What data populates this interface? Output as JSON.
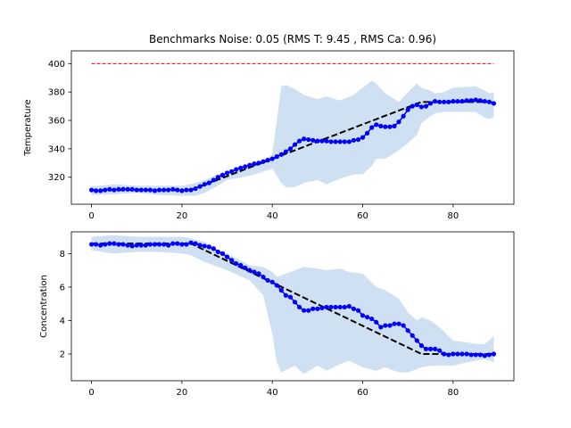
{
  "figure": {
    "title": "Benchmarks Noise: 0.05 (RMS T: 9.45 , RMS Ca: 0.96)"
  },
  "colors": {
    "series_points": "#0000ff",
    "reference": "#000000",
    "limit": "#ff0000",
    "band": "#c6dbee"
  },
  "chart_data": [
    {
      "type": "line",
      "ylabel": "Temperature",
      "xlabel": "",
      "xlim": [
        -4.45,
        93.45
      ],
      "ylim": [
        301,
        409
      ],
      "xticks": [
        0,
        20,
        40,
        60,
        80
      ],
      "yticks": [
        320,
        340,
        360,
        380,
        400
      ],
      "grid": false,
      "limit_line": {
        "y": 400,
        "x_range": [
          0,
          89
        ],
        "style": "dashed",
        "color": "red"
      },
      "band": {
        "x": [
          0,
          5,
          10,
          15,
          20,
          23,
          25,
          28,
          30,
          35,
          38,
          40,
          41,
          42,
          43,
          45,
          47,
          50,
          52,
          55,
          58,
          60,
          62,
          63,
          65,
          68,
          70,
          72,
          73,
          75,
          76,
          78,
          80,
          85,
          87,
          88,
          89
        ],
        "upper": [
          313.5,
          315,
          314,
          314,
          314,
          316,
          318,
          322,
          324,
          329,
          332,
          336,
          360,
          384,
          385,
          382,
          378,
          375,
          377,
          374,
          378,
          383,
          388,
          386,
          379,
          373,
          380,
          386,
          383,
          381,
          379,
          380,
          383,
          384,
          381,
          379,
          380
        ],
        "lower": [
          307.5,
          308,
          309,
          307.5,
          307,
          307,
          309,
          314,
          318,
          321,
          324,
          326,
          321,
          316,
          313,
          313,
          316,
          318,
          315,
          319,
          322,
          322,
          328,
          333,
          333,
          339,
          344,
          350,
          358,
          363,
          365,
          366,
          366,
          366,
          362,
          361,
          362
        ]
      },
      "reference": {
        "x": [
          0,
          22,
          73,
          75,
          89
        ],
        "y": [
          311,
          311,
          373,
          373,
          373
        ]
      },
      "points": {
        "x": [
          0,
          1,
          2,
          3,
          4,
          5,
          6,
          7,
          8,
          9,
          10,
          11,
          12,
          13,
          14,
          15,
          16,
          17,
          18,
          19,
          20,
          21,
          22,
          23,
          24,
          25,
          26,
          27,
          28,
          29,
          30,
          31,
          32,
          33,
          34,
          35,
          36,
          37,
          38,
          39,
          40,
          41,
          42,
          43,
          44,
          45,
          46,
          47,
          48,
          49,
          50,
          51,
          52,
          53,
          54,
          55,
          56,
          57,
          58,
          59,
          60,
          61,
          62,
          63,
          64,
          65,
          66,
          67,
          68,
          69,
          70,
          71,
          72,
          73,
          74,
          75,
          76,
          77,
          78,
          79,
          80,
          81,
          82,
          83,
          84,
          85,
          86,
          87,
          88,
          89
        ],
        "y": [
          311,
          310.5,
          310.5,
          311,
          311.5,
          311,
          311.5,
          311.5,
          311.5,
          311.5,
          311,
          311,
          311,
          311,
          310.5,
          311,
          311,
          311,
          311.5,
          311,
          310.5,
          311,
          311,
          312,
          313.5,
          315,
          316,
          318,
          320,
          321.5,
          323,
          324,
          325.5,
          326.5,
          327.5,
          328.5,
          329.5,
          330,
          331,
          332,
          333,
          334.5,
          336,
          338,
          340,
          343,
          345.5,
          347,
          346.5,
          346,
          345.5,
          345.5,
          345.5,
          345,
          345,
          345,
          345,
          345,
          346,
          346.5,
          348,
          351,
          355,
          357,
          356,
          355.5,
          355.5,
          356,
          359,
          363,
          367.5,
          370,
          371,
          369.5,
          370,
          372,
          373.5,
          373,
          373,
          373,
          373.5,
          373.5,
          373.5,
          374,
          374,
          374.5,
          374,
          373.5,
          373,
          372
        ]
      }
    },
    {
      "type": "line",
      "ylabel": "Concentration",
      "xlabel": "",
      "xlim": [
        -4.45,
        93.45
      ],
      "ylim": [
        0.4,
        9.3
      ],
      "xticks": [
        0,
        20,
        40,
        60,
        80
      ],
      "yticks": [
        2,
        4,
        6,
        8
      ],
      "grid": false,
      "band": {
        "x": [
          0,
          5,
          10,
          15,
          20,
          22,
          25,
          28,
          30,
          35,
          38,
          40,
          41,
          42,
          45,
          47,
          50,
          52,
          55,
          57,
          60,
          63,
          65,
          68,
          70,
          72,
          73,
          75,
          77,
          80,
          83,
          85,
          87,
          88,
          89
        ],
        "upper": [
          9.0,
          9.1,
          9.0,
          9.0,
          9.0,
          8.9,
          8.7,
          8.2,
          8.0,
          7.3,
          7.2,
          6.9,
          6.6,
          6.7,
          7.0,
          7.2,
          7.1,
          7.0,
          7.1,
          6.9,
          6.8,
          6.0,
          5.8,
          5.3,
          4.5,
          4.0,
          4.2,
          4.0,
          3.6,
          2.8,
          2.7,
          2.6,
          2.6,
          2.8,
          3.1
        ],
        "lower": [
          8.2,
          8.0,
          8.1,
          8.1,
          8.0,
          7.9,
          7.5,
          7.2,
          7.0,
          6.4,
          5.5,
          3.2,
          1.5,
          0.9,
          1.3,
          0.8,
          1.3,
          1.0,
          1.4,
          1.6,
          1.2,
          1.0,
          1.2,
          0.9,
          0.9,
          1.1,
          1.2,
          1.3,
          1.3,
          1.3,
          1.5,
          1.6,
          1.7,
          1.6,
          1.5
        ]
      },
      "reference": {
        "x": [
          0,
          22,
          73,
          75,
          89
        ],
        "y": [
          8.6,
          8.6,
          2.0,
          2.0,
          2.0
        ]
      },
      "points": {
        "x": [
          0,
          1,
          2,
          3,
          4,
          5,
          6,
          7,
          8,
          9,
          10,
          11,
          12,
          13,
          14,
          15,
          16,
          17,
          18,
          19,
          20,
          21,
          22,
          23,
          24,
          25,
          26,
          27,
          28,
          29,
          30,
          31,
          32,
          33,
          34,
          35,
          36,
          37,
          38,
          39,
          40,
          41,
          42,
          43,
          44,
          45,
          46,
          47,
          48,
          49,
          50,
          51,
          52,
          53,
          54,
          55,
          56,
          57,
          58,
          59,
          60,
          61,
          62,
          63,
          64,
          65,
          66,
          67,
          68,
          69,
          70,
          71,
          72,
          73,
          74,
          75,
          76,
          77,
          78,
          79,
          80,
          81,
          82,
          83,
          84,
          85,
          86,
          87,
          88,
          89
        ],
        "y": [
          8.55,
          8.55,
          8.5,
          8.55,
          8.6,
          8.6,
          8.55,
          8.55,
          8.5,
          8.45,
          8.5,
          8.5,
          8.5,
          8.55,
          8.55,
          8.55,
          8.55,
          8.5,
          8.6,
          8.6,
          8.55,
          8.55,
          8.65,
          8.6,
          8.5,
          8.45,
          8.4,
          8.3,
          8.1,
          8.0,
          7.8,
          7.6,
          7.4,
          7.3,
          7.15,
          7.0,
          6.9,
          6.8,
          6.6,
          6.4,
          6.3,
          6.1,
          5.8,
          5.5,
          5.4,
          5.1,
          4.8,
          4.6,
          4.6,
          4.7,
          4.7,
          4.75,
          4.8,
          4.8,
          4.8,
          4.8,
          4.8,
          4.85,
          4.7,
          4.6,
          4.3,
          4.2,
          4.1,
          3.9,
          3.6,
          3.7,
          3.7,
          3.8,
          3.8,
          3.7,
          3.4,
          3.1,
          2.8,
          2.5,
          2.3,
          2.3,
          2.3,
          2.2,
          2.0,
          1.95,
          2.0,
          2.0,
          2.0,
          2.0,
          1.95,
          1.95,
          1.95,
          1.9,
          1.95,
          2.0
        ]
      }
    }
  ]
}
